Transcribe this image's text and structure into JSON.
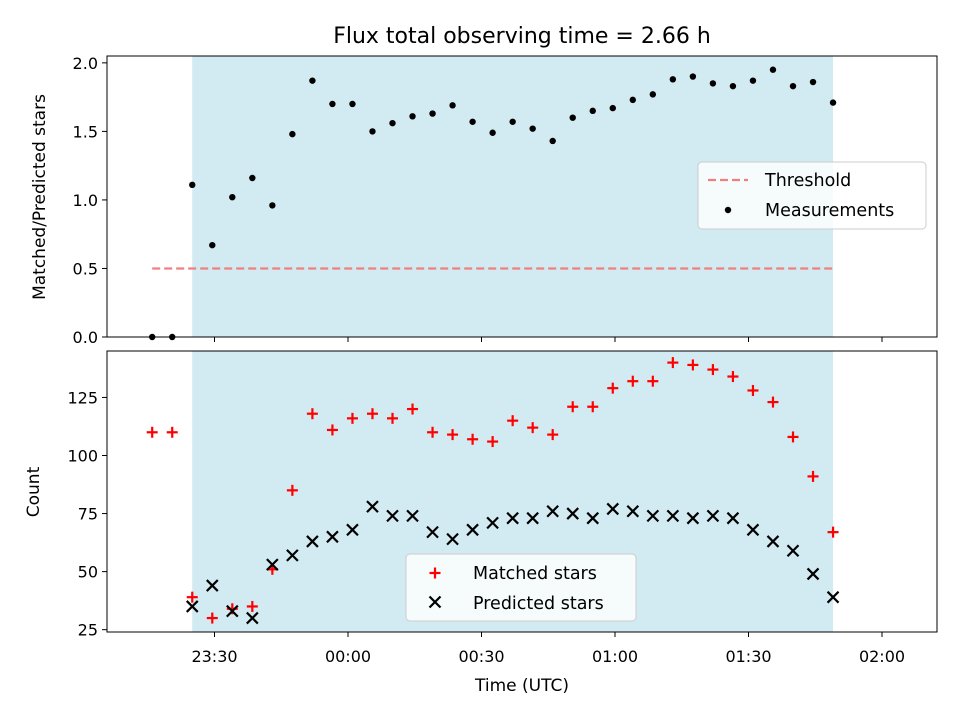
{
  "chart_data": [
    {
      "type": "scatter",
      "title": "Flux total observing time = 2.66 h",
      "xlabel": "",
      "ylabel": "Matched/Predicted stars",
      "ylim": [
        0,
        2.05
      ],
      "yticks": [
        "0.0",
        "0.5",
        "1.0",
        "1.5",
        "2.0"
      ],
      "xticks": [
        "23:30",
        "00:00",
        "00:30",
        "01:00",
        "01:30",
        "02:00"
      ],
      "xtick_labels_shown": false,
      "threshold": 0.5,
      "threshold_color": "#f08080",
      "span_color": "#add8e6",
      "legend_position": "center right",
      "series": [
        {
          "name": "Threshold",
          "kind": "dashed-line",
          "color": "#f08080"
        },
        {
          "name": "Measurements",
          "kind": "dots",
          "color": "#000000",
          "values": [
            0,
            0,
            1.11,
            0.67,
            1.02,
            1.16,
            0.96,
            1.48,
            1.87,
            1.7,
            1.7,
            1.5,
            1.56,
            1.61,
            1.63,
            1.69,
            1.57,
            1.49,
            1.57,
            1.52,
            1.43,
            1.6,
            1.65,
            1.67,
            1.73,
            1.77,
            1.88,
            1.9,
            1.85,
            1.83,
            1.87,
            1.95,
            1.83,
            1.86,
            1.71
          ]
        }
      ]
    },
    {
      "type": "scatter",
      "title": "",
      "xlabel": "Time (UTC)",
      "ylabel": "Count",
      "ylim": [
        24,
        145
      ],
      "yticks": [
        "25",
        "50",
        "75",
        "100",
        "125"
      ],
      "xticks": [
        "23:30",
        "00:00",
        "00:30",
        "01:00",
        "01:30",
        "02:00"
      ],
      "legend_position": "lower center",
      "series": [
        {
          "name": "Matched stars",
          "marker": "+",
          "color": "#ff0000",
          "values": [
            110,
            110,
            39,
            30,
            34,
            35,
            51,
            85,
            118,
            111,
            116,
            118,
            116,
            120,
            110,
            109,
            107,
            106,
            115,
            112,
            109,
            121,
            121,
            129,
            132,
            132,
            140,
            139,
            137,
            134,
            128,
            123,
            108,
            91,
            67
          ]
        },
        {
          "name": "Predicted stars",
          "marker": "x",
          "color": "#000000",
          "values": [
            null,
            null,
            35,
            44,
            33,
            30,
            53,
            57,
            63,
            65,
            68,
            78,
            74,
            74,
            67,
            64,
            68,
            71,
            73,
            73,
            76,
            75,
            73,
            77,
            76,
            74,
            74,
            73,
            74,
            73,
            68,
            63,
            59,
            49,
            39
          ]
        }
      ]
    }
  ]
}
